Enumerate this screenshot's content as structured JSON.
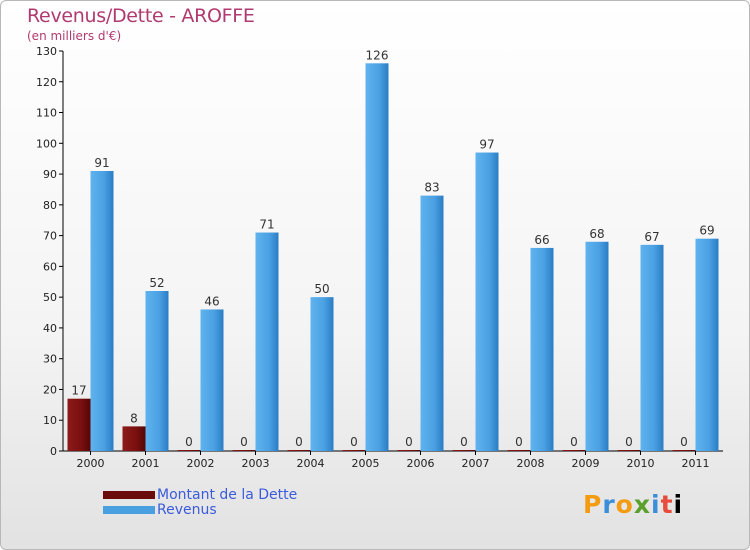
{
  "header": {
    "title": "Revenus/Dette - AROFFE",
    "subtitle": "(en milliers d'€)"
  },
  "chart_data": {
    "type": "bar",
    "title": "Revenus/Dette - AROFFE",
    "ylabel": "(en milliers d'€)",
    "xlabel": "",
    "categories": [
      "2000",
      "2001",
      "2002",
      "2003",
      "2004",
      "2005",
      "2006",
      "2007",
      "2008",
      "2009",
      "2010",
      "2011"
    ],
    "series": [
      {
        "name": "Montant de la Dette",
        "color": "#7a0f0f",
        "values": [
          17,
          8,
          0,
          0,
          0,
          0,
          0,
          0,
          0,
          0,
          0,
          0
        ]
      },
      {
        "name": "Revenus",
        "color": "#4a9fe0",
        "values": [
          91,
          52,
          46,
          71,
          50,
          126,
          83,
          97,
          66,
          68,
          67,
          69
        ]
      }
    ],
    "ylim": [
      0,
      130
    ],
    "yticks": [
      0,
      10,
      20,
      30,
      40,
      50,
      60,
      70,
      80,
      90,
      100,
      110,
      120,
      130
    ],
    "grid": false,
    "legend": "bottom-left"
  },
  "legend": {
    "items": [
      {
        "label": "Montant de la Dette",
        "color": "#6b0d0d"
      },
      {
        "label": "Revenus",
        "color": "#4a9fe0"
      }
    ]
  },
  "logo": {
    "letters": [
      "P",
      "r",
      "o",
      "x",
      "i",
      "t",
      "i"
    ]
  }
}
